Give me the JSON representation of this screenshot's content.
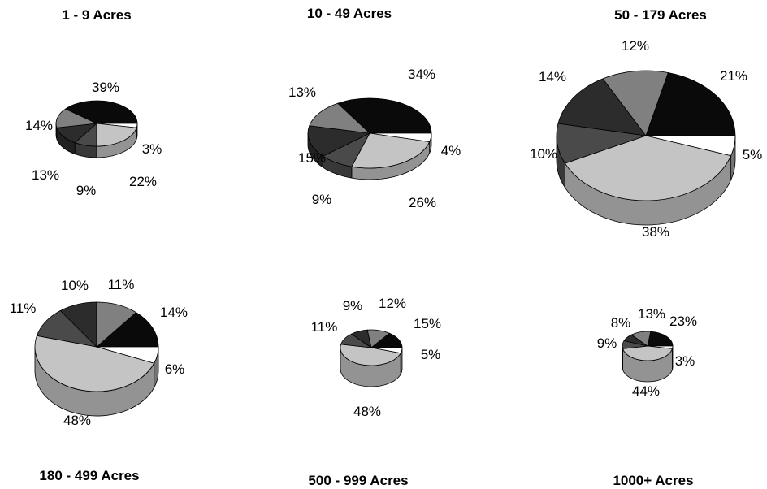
{
  "slice_colors": [
    "#0a0a0a",
    "#ffffff",
    "#c4c4c4",
    "#4a4a4a",
    "#2c2c2c",
    "#808080",
    "#6a6a6a",
    "#3a3a3a"
  ],
  "chart_data": [
    {
      "type": "pie",
      "title": "1 - 9 Acres",
      "slices": [
        {
          "value": 39,
          "label": "39%"
        },
        {
          "value": 3,
          "label": "3%"
        },
        {
          "value": 22,
          "label": "22%"
        },
        {
          "value": 9,
          "label": "9%"
        },
        {
          "value": 13,
          "label": "13%"
        },
        {
          "value": 14,
          "label": "14%"
        }
      ]
    },
    {
      "type": "pie",
      "title": "10 - 49 Acres",
      "slices": [
        {
          "value": 34,
          "label": "34%"
        },
        {
          "value": 4,
          "label": "4%"
        },
        {
          "value": 26,
          "label": "26%"
        },
        {
          "value": 9,
          "label": "9%"
        },
        {
          "value": 15,
          "label": "15%"
        },
        {
          "value": 13,
          "label": "13%"
        }
      ]
    },
    {
      "type": "pie",
      "title": "50 - 179 Acres",
      "slices": [
        {
          "value": 21,
          "label": "21%"
        },
        {
          "value": 5,
          "label": "5%"
        },
        {
          "value": 38,
          "label": "38%"
        },
        {
          "value": 10,
          "label": "10%"
        },
        {
          "value": 14,
          "label": "14%"
        },
        {
          "value": 12,
          "label": "12%"
        }
      ]
    },
    {
      "type": "pie",
      "title": "180 - 499 Acres",
      "slices": [
        {
          "value": 14,
          "label": "14%"
        },
        {
          "value": 6,
          "label": "6%"
        },
        {
          "value": 48,
          "label": "48%"
        },
        {
          "value": 11,
          "label": "11%"
        },
        {
          "value": 10,
          "label": "10%"
        },
        {
          "value": 11,
          "label": "11%"
        }
      ]
    },
    {
      "type": "pie",
      "title": "500 - 999 Acres",
      "slices": [
        {
          "value": 15,
          "label": "15%"
        },
        {
          "value": 5,
          "label": "5%"
        },
        {
          "value": 48,
          "label": "48%"
        },
        {
          "value": 11,
          "label": "11%"
        },
        {
          "value": 9,
          "label": "9%"
        },
        {
          "value": 12,
          "label": "12%"
        }
      ]
    },
    {
      "type": "pie",
      "title": "1000+ Acres",
      "slices": [
        {
          "value": 23,
          "label": "23%"
        },
        {
          "value": 3,
          "label": "3%"
        },
        {
          "value": 44,
          "label": "44%"
        },
        {
          "value": 9,
          "label": "9%"
        },
        {
          "value": 8,
          "label": "8%"
        },
        {
          "value": 13,
          "label": "13%"
        }
      ]
    }
  ]
}
